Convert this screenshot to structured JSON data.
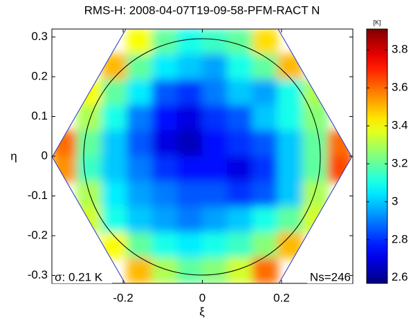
{
  "chart_data": {
    "type": "heatmap",
    "title": "RMS-H: 2008-04-07T19-09-58-PFM-RACT N",
    "x_label": "ξ",
    "y_label": "η",
    "xlim": [
      -0.38,
      0.38
    ],
    "ylim": [
      -0.32,
      0.32
    ],
    "xticks": [
      -0.2,
      0,
      0.2
    ],
    "yticks": [
      0.3,
      0.2,
      0.1,
      0,
      -0.1,
      -0.2,
      -0.3
    ],
    "z": [
      [
        null,
        null,
        null,
        3.4,
        3.2,
        3.1,
        3.15,
        3.2,
        3.45,
        null,
        null,
        null
      ],
      [
        null,
        null,
        3.5,
        3.2,
        3.05,
        3.0,
        2.95,
        3.1,
        3.2,
        3.5,
        null,
        null
      ],
      [
        null,
        3.4,
        3.2,
        3.05,
        2.85,
        2.8,
        2.9,
        3.0,
        2.95,
        3.1,
        3.3,
        null
      ],
      [
        null,
        3.3,
        3.1,
        2.9,
        2.75,
        2.7,
        2.8,
        2.85,
        3.0,
        3.1,
        3.25,
        null
      ],
      [
        3.6,
        3.2,
        3.0,
        2.85,
        2.7,
        2.65,
        2.75,
        2.8,
        2.85,
        3.0,
        3.2,
        3.6
      ],
      [
        3.55,
        3.15,
        3.0,
        2.9,
        2.8,
        2.75,
        2.75,
        2.7,
        2.8,
        3.0,
        3.2,
        3.65
      ],
      [
        null,
        3.3,
        3.05,
        2.95,
        2.9,
        2.85,
        2.85,
        2.8,
        2.85,
        3.0,
        3.3,
        null
      ],
      [
        null,
        3.35,
        3.1,
        3.0,
        2.95,
        2.9,
        2.95,
        3.0,
        3.1,
        3.2,
        3.35,
        null
      ],
      [
        null,
        null,
        3.4,
        3.2,
        3.1,
        3.05,
        3.1,
        3.15,
        3.25,
        3.5,
        null,
        null
      ],
      [
        null,
        null,
        null,
        3.5,
        3.3,
        3.2,
        3.25,
        3.35,
        3.6,
        null,
        null,
        null
      ]
    ],
    "colorbar_label": "[K]",
    "clim": [
      2.57,
      3.91
    ],
    "cticks": [
      3.8,
      3.6,
      3.4,
      3.2,
      3,
      2.8,
      2.6
    ],
    "annotations": [
      "σ: 0.21 K",
      "Ns=246"
    ]
  }
}
